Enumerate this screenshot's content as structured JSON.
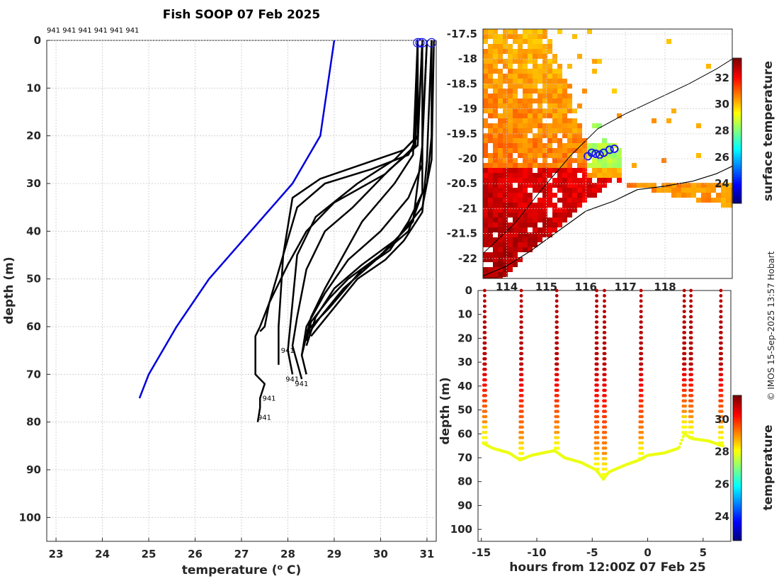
{
  "title": "Fish SOOP 07 Feb 2025",
  "credit": "© IMOS 15-Sep-2025 13:57 Hobart",
  "colors": {
    "profile": "#000000",
    "climatology": "#0000dd",
    "marker": "#1a1ae6",
    "land": "#000000",
    "grid": "#c8c8c8"
  },
  "chart_data": [
    {
      "type": "line",
      "name": "profile-panel",
      "xlabel": "temperature (",
      "xlabel_sup": "o",
      "xlabel_tail": " C)",
      "ylabel": "depth (m)",
      "xlim": [
        22.8,
        31.2
      ],
      "ylim": [
        105,
        0
      ],
      "xticks": [
        23,
        24,
        25,
        26,
        27,
        28,
        29,
        30,
        31
      ],
      "yticks": [
        0,
        10,
        20,
        30,
        40,
        50,
        60,
        70,
        80,
        90,
        100
      ],
      "top_label": "941 941 941 941 941 941",
      "climatology": {
        "name": "climatology",
        "depth": [
          0,
          10,
          20,
          30,
          40,
          50,
          60,
          70,
          75
        ],
        "temperature": [
          29.0,
          28.85,
          28.7,
          28.1,
          27.2,
          26.3,
          25.6,
          25.0,
          24.8
        ]
      },
      "profiles": [
        {
          "depth": [
            0,
            20,
            24,
            27,
            30,
            35,
            45,
            55,
            60,
            61
          ],
          "temperature": [
            30.8,
            30.8,
            30.6,
            29.8,
            28.8,
            28.2,
            27.9,
            27.6,
            27.5,
            27.4
          ]
        },
        {
          "depth": [
            0,
            20,
            23,
            26,
            29,
            33,
            45,
            60,
            68
          ],
          "temperature": [
            30.8,
            30.8,
            30.5,
            29.6,
            28.7,
            28.1,
            27.9,
            27.8,
            27.8
          ]
        },
        {
          "depth": [
            0,
            20,
            25,
            30,
            37,
            45,
            55,
            65,
            70
          ],
          "temperature": [
            30.9,
            30.8,
            30.3,
            29.5,
            28.6,
            28.2,
            28.1,
            28.0,
            28.1
          ]
        },
        {
          "depth": [
            0,
            22,
            27,
            35,
            40,
            48,
            58,
            64,
            71
          ],
          "temperature": [
            30.9,
            30.8,
            30.2,
            29.4,
            28.8,
            28.4,
            28.2,
            28.1,
            28.3
          ]
        },
        {
          "depth": [
            0,
            24,
            30,
            38,
            45,
            52,
            58,
            66,
            70
          ],
          "temperature": [
            30.8,
            30.7,
            30.3,
            29.6,
            29.2,
            28.8,
            28.5,
            28.3,
            28.4
          ]
        },
        {
          "depth": [
            0,
            26,
            33,
            40,
            46,
            53,
            60,
            66
          ],
          "temperature": [
            30.9,
            30.9,
            30.6,
            30.0,
            29.3,
            28.8,
            28.4,
            28.3
          ]
        },
        {
          "depth": [
            0,
            22,
            30,
            38,
            42,
            47,
            52,
            58,
            64
          ],
          "temperature": [
            31.0,
            30.9,
            30.8,
            30.7,
            30.3,
            29.6,
            29.0,
            28.6,
            28.4
          ]
        },
        {
          "depth": [
            0,
            20,
            32,
            40,
            45,
            50,
            54,
            59,
            63
          ],
          "temperature": [
            31.0,
            30.9,
            30.9,
            30.6,
            30.0,
            29.3,
            28.9,
            28.5,
            28.4
          ]
        },
        {
          "depth": [
            0,
            25,
            36,
            42,
            46,
            50,
            56,
            62
          ],
          "temperature": [
            31.1,
            31.0,
            30.9,
            30.5,
            30.1,
            29.5,
            29.0,
            28.5
          ]
        },
        {
          "depth": [
            0,
            20,
            30,
            38,
            44,
            48,
            56,
            61
          ],
          "temperature": [
            31.1,
            31.1,
            31.0,
            30.6,
            30.2,
            29.6,
            28.9,
            28.4
          ]
        },
        {
          "depth": [
            0,
            25,
            35,
            41,
            46,
            52,
            58,
            62
          ],
          "temperature": [
            31.15,
            31.1,
            30.9,
            30.4,
            29.9,
            29.2,
            28.7,
            28.4
          ]
        },
        {
          "depth": [
            0,
            22,
            28,
            34,
            40,
            47,
            55,
            60,
            62,
            66,
            70,
            72,
            75,
            77,
            80
          ],
          "temperature": [
            30.8,
            30.75,
            30.1,
            29.0,
            28.4,
            28.0,
            27.6,
            27.4,
            27.3,
            27.3,
            27.3,
            27.5,
            27.4,
            27.4,
            27.35
          ]
        }
      ],
      "end_labels": [
        {
          "temperature": 27.85,
          "depth": 65.5,
          "text": "941"
        },
        {
          "temperature": 27.95,
          "depth": 71.5,
          "text": "941"
        },
        {
          "temperature": 28.15,
          "depth": 72.5,
          "text": "941"
        },
        {
          "temperature": 27.45,
          "depth": 75.5,
          "text": "941"
        },
        {
          "temperature": 27.35,
          "depth": 79.5,
          "text": "941"
        }
      ],
      "surface_markers": [
        30.8,
        30.85,
        30.9,
        31.1
      ]
    },
    {
      "type": "heatmap",
      "name": "sst-map",
      "xlim": [
        113.4,
        119.7
      ],
      "ylim": [
        -22.4,
        -17.4
      ],
      "yticks": [
        -17.5,
        -18,
        -18.5,
        -19,
        -19.5,
        -20,
        -20.5,
        -21,
        -21.5,
        -22
      ],
      "xticks": [
        114,
        115,
        116,
        117,
        118
      ],
      "colorbar": {
        "label": "surface temperature",
        "range": [
          22.5,
          33.5
        ],
        "ticks": [
          24,
          26,
          28,
          30,
          32
        ]
      },
      "coastline": {
        "lon": [
          113.4,
          114.0,
          114.6,
          115.3,
          116.0,
          116.7,
          117.3,
          118.0,
          118.7,
          119.3,
          119.7
        ],
        "lat": [
          -22.35,
          -22.15,
          -21.85,
          -21.45,
          -21.05,
          -20.85,
          -20.62,
          -20.55,
          -20.45,
          -20.3,
          -20.15
        ]
      },
      "shelf_contour": {
        "lon": [
          113.4,
          114.2,
          114.9,
          115.6,
          116.3,
          117.0,
          117.8,
          118.6,
          119.3,
          119.7
        ],
        "lat": [
          -21.9,
          -21.3,
          -20.6,
          -19.95,
          -19.4,
          -19.1,
          -18.8,
          -18.5,
          -18.2,
          -18.0
        ]
      },
      "track": {
        "lon": [
          116.05,
          116.15,
          116.25,
          116.35,
          116.45,
          116.6,
          116.72
        ],
        "lat": [
          -19.95,
          -19.88,
          -19.9,
          -19.92,
          -19.88,
          -19.82,
          -19.8
        ]
      }
    },
    {
      "type": "scatter",
      "name": "time-depth-panel",
      "xlabel": "hours from 12:00Z 07 Feb 25",
      "ylabel": "depth (m)",
      "xlim": [
        -15.3,
        7.5
      ],
      "ylim": [
        105,
        0
      ],
      "xticks": [
        -15,
        -10,
        -5,
        0,
        5
      ],
      "yticks": [
        0,
        10,
        20,
        30,
        40,
        50,
        60,
        70,
        80,
        90,
        100
      ],
      "colorbar": {
        "label": "temperature",
        "range": [
          22.5,
          31.5
        ],
        "ticks": [
          24,
          26,
          28,
          30
        ]
      },
      "casts": [
        -14.7,
        -11.4,
        -8.2,
        -4.6,
        -3.9,
        -0.6,
        3.3,
        3.9,
        6.6
      ],
      "bottom_depth": {
        "time": [
          -14.8,
          -14.0,
          -12.5,
          -11.5,
          -10.5,
          -8.4,
          -7.5,
          -6.0,
          -4.7,
          -4.5,
          -4.0,
          -3.5,
          -2.0,
          -0.8,
          0.0,
          1.5,
          2.8,
          3.3,
          4.0,
          5.5,
          6.7
        ],
        "depth": [
          64,
          66,
          68,
          71,
          69,
          67,
          70,
          72,
          75,
          76,
          79,
          76,
          73,
          71,
          69,
          68,
          66,
          60,
          62,
          63,
          65
        ]
      }
    }
  ]
}
